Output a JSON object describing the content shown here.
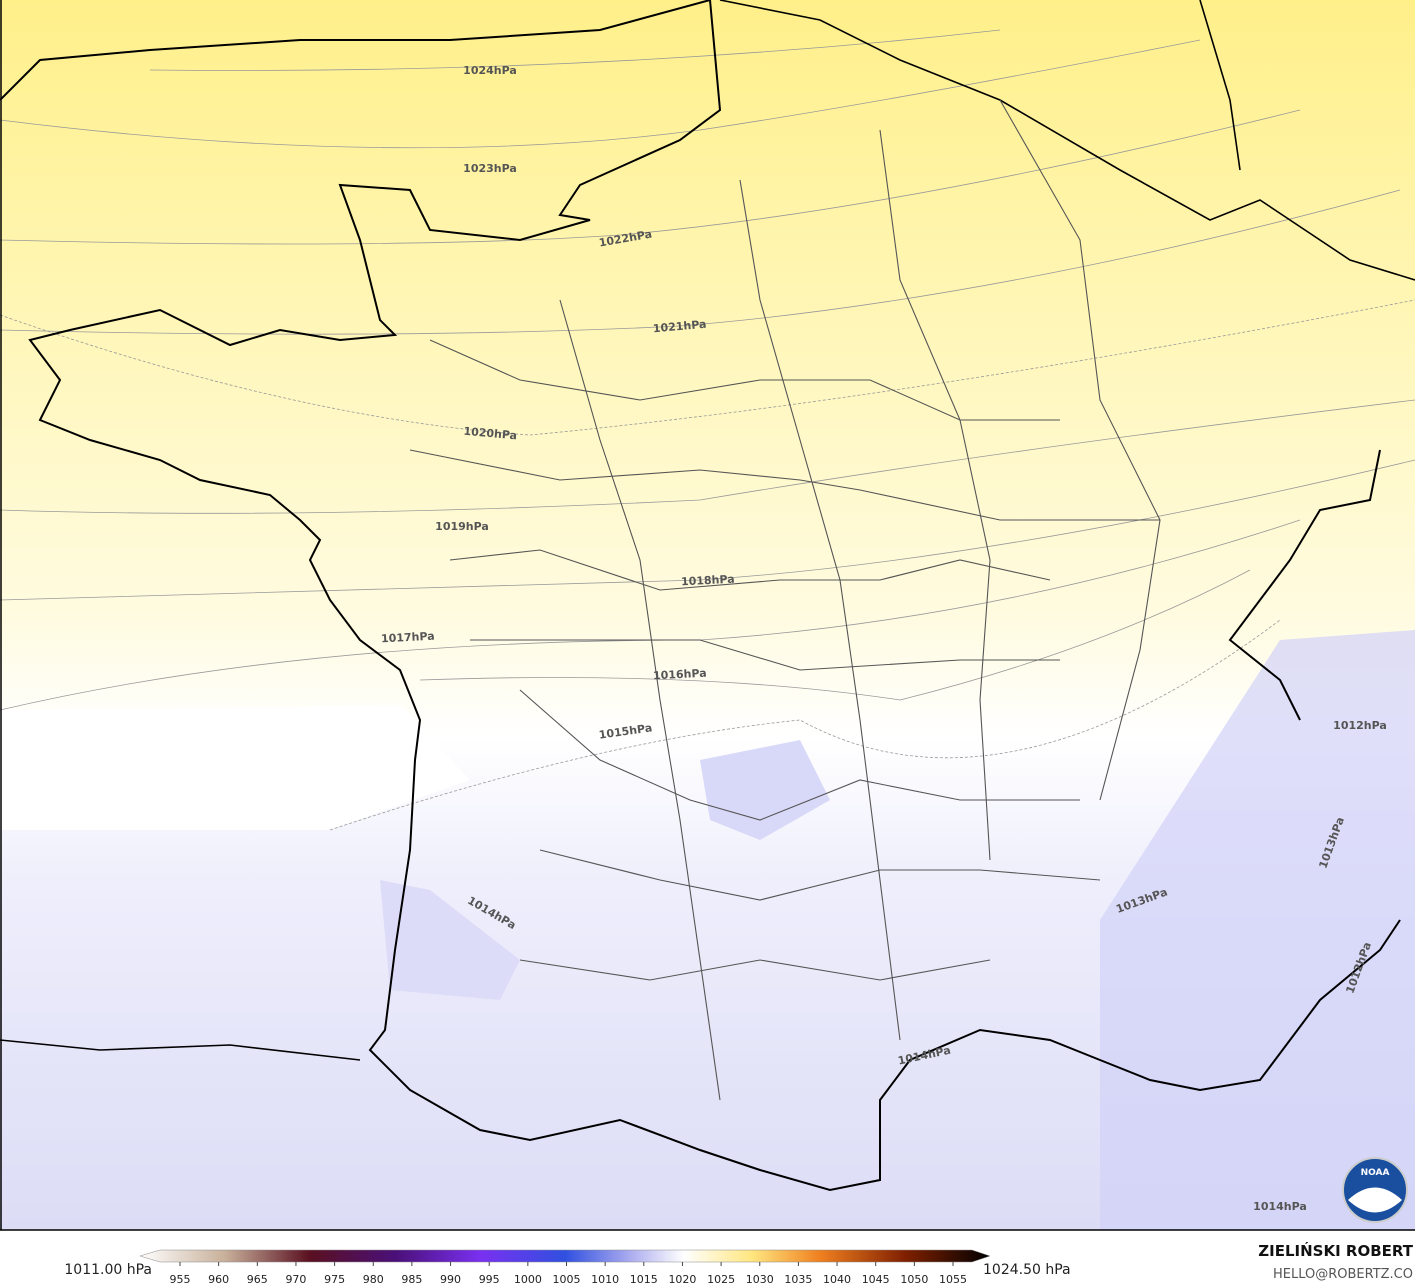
{
  "map": {
    "isobar_labels": [
      "1024hPa",
      "1023hPa",
      "1022hPa",
      "1021hPa",
      "1020hPa",
      "1019hPa",
      "1018hPa",
      "1017hPa",
      "1016hPa",
      "1015hPa",
      "1014hPa",
      "1013hPa",
      "1014hPa",
      "1014hPa",
      "1012hPa",
      "1013hPa",
      "1012hPa"
    ],
    "colorbar": {
      "min_label": "1011.00 hPa",
      "max_label": "1024.50 hPa",
      "ticks": [
        955,
        960,
        965,
        970,
        975,
        980,
        985,
        990,
        995,
        1000,
        1005,
        1010,
        1015,
        1020,
        1025,
        1030,
        1035,
        1040,
        1045,
        1050,
        1055
      ]
    },
    "credit": {
      "author": "ZIELIŃSKI ROBERT",
      "email": "HELLO@ROBERTZ.CO",
      "logo": "NOAA"
    }
  }
}
